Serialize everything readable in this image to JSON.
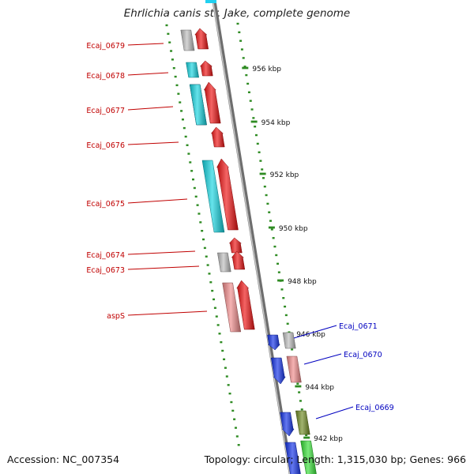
{
  "title": "Ehrlichia canis str. Jake, complete genome",
  "footer": {
    "accession": "Accession: NC_007354",
    "summary": "Topology: circular; Length: 1,315,030 bp; Genes: 966"
  },
  "colors": {
    "backbone": "#8a8a8a",
    "tick": "#2e8b22",
    "label_left": "#c00000",
    "label_right": "#0000c0",
    "red": "#ee1111",
    "cyan": "#14d4e0",
    "grey": "#bdbdbd",
    "navy": "#3a2a8c",
    "blue": "#1030e8",
    "pink": "#f08a8a",
    "olive": "#6e8a22",
    "green": "#33dd33"
  },
  "kbp_ticks": [
    "956 kbp",
    "954 kbp",
    "952 kbp",
    "950 kbp",
    "948 kbp",
    "946 kbp",
    "944 kbp",
    "942 kbp"
  ],
  "gene_labels_left": [
    "Ecaj_0679",
    "Ecaj_0678",
    "Ecaj_0677",
    "Ecaj_0676",
    "Ecaj_0675",
    "Ecaj_0674",
    "Ecaj_0673",
    "aspS"
  ],
  "gene_labels_right": [
    "Ecaj_0671",
    "Ecaj_0670",
    "Ecaj_0669"
  ]
}
